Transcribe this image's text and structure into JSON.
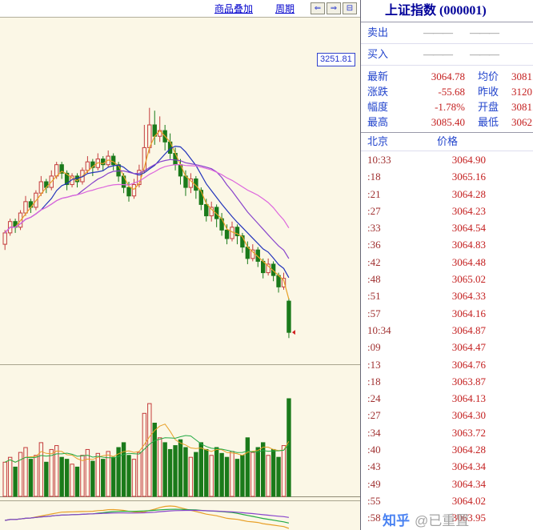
{
  "toolbar": {
    "overlay_label": "商品叠加",
    "period_label": "周期",
    "buttons": [
      "⇐",
      "⇒",
      "⊟"
    ]
  },
  "chart": {
    "price_label": "3251.81",
    "colors": {
      "up": "#c43c3c",
      "down": "#1a7a1a",
      "bg": "#fbf7e6"
    },
    "ma": [
      {
        "n": 3,
        "color": "#e8a028"
      },
      {
        "n": 8,
        "color": "#2233bb"
      },
      {
        "n": 15,
        "color": "#8844cc"
      },
      {
        "n": 25,
        "color": "#dd66dd"
      }
    ],
    "vol_ma": [
      {
        "n": 5,
        "color": "#e8a028"
      },
      {
        "n": 10,
        "color": "#22aa44"
      }
    ],
    "sub_ma": [
      {
        "n": 6,
        "color": "#e8a028"
      },
      {
        "n": 18,
        "color": "#22aa44"
      },
      {
        "n": 30,
        "color": "#8844cc"
      }
    ],
    "candles": [
      [
        38,
        42,
        36,
        43
      ],
      [
        42,
        46,
        41,
        47
      ],
      [
        46,
        44,
        42,
        47
      ],
      [
        44,
        49,
        43,
        50
      ],
      [
        49,
        53,
        48,
        55
      ],
      [
        53,
        51,
        49,
        54
      ],
      [
        51,
        56,
        50,
        57
      ],
      [
        56,
        60,
        55,
        62
      ],
      [
        60,
        58,
        56,
        61
      ],
      [
        58,
        62,
        57,
        64
      ],
      [
        62,
        66,
        61,
        67
      ],
      [
        66,
        63,
        61,
        67
      ],
      [
        63,
        59,
        57,
        64
      ],
      [
        59,
        62,
        58,
        63
      ],
      [
        62,
        60,
        58,
        63
      ],
      [
        60,
        64,
        59,
        65
      ],
      [
        64,
        67,
        63,
        69
      ],
      [
        67,
        65,
        62,
        68
      ],
      [
        65,
        68,
        64,
        70
      ],
      [
        68,
        66,
        64,
        69
      ],
      [
        66,
        69,
        65,
        71
      ],
      [
        69,
        66,
        64,
        70
      ],
      [
        66,
        62,
        60,
        67
      ],
      [
        62,
        58,
        56,
        63
      ],
      [
        58,
        55,
        53,
        60
      ],
      [
        55,
        59,
        54,
        61
      ],
      [
        59,
        64,
        58,
        66
      ],
      [
        64,
        72,
        63,
        80
      ],
      [
        72,
        80,
        70,
        86
      ],
      [
        80,
        76,
        73,
        85
      ],
      [
        76,
        78,
        74,
        83
      ],
      [
        78,
        74,
        71,
        80
      ],
      [
        74,
        70,
        68,
        77
      ],
      [
        70,
        66,
        64,
        72
      ],
      [
        66,
        62,
        59,
        68
      ],
      [
        62,
        58,
        55,
        64
      ],
      [
        58,
        61,
        56,
        63
      ],
      [
        61,
        57,
        54,
        62
      ],
      [
        57,
        52,
        50,
        58
      ],
      [
        52,
        48,
        46,
        54
      ],
      [
        48,
        51,
        46,
        53
      ],
      [
        51,
        47,
        44,
        52
      ],
      [
        47,
        43,
        41,
        49
      ],
      [
        43,
        40,
        38,
        45
      ],
      [
        40,
        44,
        39,
        46
      ],
      [
        44,
        41,
        38,
        45
      ],
      [
        41,
        37,
        35,
        42
      ],
      [
        37,
        33,
        31,
        39
      ],
      [
        33,
        36,
        32,
        38
      ],
      [
        36,
        32,
        30,
        37
      ],
      [
        32,
        28,
        26,
        33
      ],
      [
        28,
        31,
        27,
        33
      ],
      [
        31,
        27,
        25,
        32
      ],
      [
        27,
        23,
        21,
        28
      ],
      [
        23,
        26,
        22,
        28
      ],
      [
        18,
        7,
        5,
        19
      ]
    ],
    "volumes": [
      35,
      40,
      30,
      45,
      50,
      38,
      42,
      55,
      35,
      48,
      52,
      40,
      38,
      33,
      30,
      42,
      48,
      36,
      44,
      38,
      46,
      40,
      50,
      55,
      42,
      38,
      45,
      85,
      95,
      75,
      60,
      55,
      48,
      52,
      58,
      50,
      40,
      45,
      55,
      48,
      42,
      50,
      44,
      40,
      46,
      38,
      42,
      60,
      45,
      50,
      55,
      42,
      48,
      40,
      52,
      100
    ]
  },
  "quote": {
    "title": "上证指数 (000001)",
    "sell_label": "卖出",
    "buy_label": "买入",
    "dash": "———",
    "stats": [
      {
        "label": "最新",
        "value": "3064.78",
        "label2": "均价",
        "value2": "3081."
      },
      {
        "label": "涨跌",
        "value": "-55.68",
        "label2": "昨收",
        "value2": "3120."
      },
      {
        "label": "幅度",
        "value": "-1.78%",
        "label2": "开盘",
        "value2": "3081."
      },
      {
        "label": "最高",
        "value": "3085.40",
        "label2": "最低",
        "value2": "3062."
      }
    ],
    "tick_header": {
      "time": "北京",
      "price": "价格"
    },
    "ticks": [
      {
        "t": "10:33",
        "p": "3064.90"
      },
      {
        "t": ":18",
        "p": "3065.16"
      },
      {
        "t": ":21",
        "p": "3064.28"
      },
      {
        "t": ":27",
        "p": "3064.23"
      },
      {
        "t": ":33",
        "p": "3064.54"
      },
      {
        "t": ":36",
        "p": "3064.83"
      },
      {
        "t": ":42",
        "p": "3064.48"
      },
      {
        "t": ":48",
        "p": "3065.02"
      },
      {
        "t": ":51",
        "p": "3064.33"
      },
      {
        "t": ":57",
        "p": "3064.16"
      },
      {
        "t": "10:34",
        "p": "3064.87"
      },
      {
        "t": ":09",
        "p": "3064.47"
      },
      {
        "t": ":13",
        "p": "3064.76"
      },
      {
        "t": ":18",
        "p": "3063.87"
      },
      {
        "t": ":24",
        "p": "3064.13"
      },
      {
        "t": ":27",
        "p": "3064.30"
      },
      {
        "t": ":34",
        "p": "3063.72"
      },
      {
        "t": ":40",
        "p": "3064.28"
      },
      {
        "t": ":43",
        "p": "3064.34"
      },
      {
        "t": ":49",
        "p": "3064.34"
      },
      {
        "t": ":55",
        "p": "3064.02"
      },
      {
        "t": ":58",
        "p": "3063.95"
      }
    ]
  },
  "watermark": {
    "brand": "知乎",
    "handle": "@已重置"
  }
}
